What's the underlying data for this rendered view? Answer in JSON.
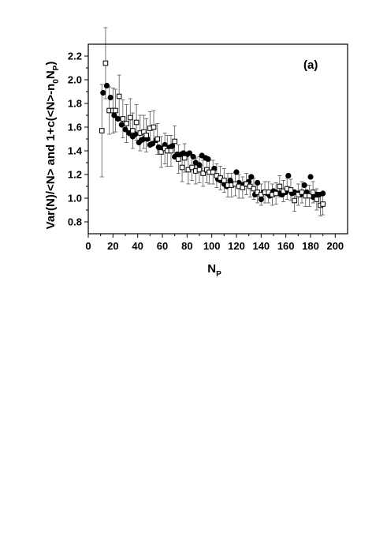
{
  "chart_data": {
    "type": "scatter",
    "title": "",
    "panel_label": "(a)",
    "xlabel": "N",
    "xlabel_sub": "P",
    "ylabel_parts": [
      {
        "t": "Var(N)/<N> and 1+c(<N>-n",
        "sub": false
      },
      {
        "t": "0",
        "sub": true
      },
      {
        "t": "N",
        "sub": false
      },
      {
        "t": "P",
        "sub": true
      },
      {
        "t": ")",
        "sub": false
      }
    ],
    "xlim": [
      0,
      210
    ],
    "ylim": [
      0.7,
      2.3
    ],
    "xticks": [
      0,
      20,
      40,
      60,
      80,
      100,
      120,
      140,
      160,
      180,
      200
    ],
    "yticks": [
      0.8,
      1.0,
      1.2,
      1.4,
      1.6,
      1.8,
      2.0,
      2.2
    ],
    "grid": false,
    "series": [
      {
        "marker": "filled-circle",
        "color": "#000000",
        "x": [
          12,
          15,
          18,
          21,
          24,
          27,
          30,
          33,
          36,
          38,
          41,
          43,
          45,
          48,
          50,
          52,
          55,
          57,
          60,
          62,
          64,
          66,
          68,
          70,
          72,
          75,
          77,
          80,
          82,
          85,
          87,
          90,
          92,
          95,
          97,
          100,
          102,
          105,
          107,
          110,
          112,
          115,
          117,
          120,
          122,
          125,
          127,
          130,
          132,
          135,
          137,
          140,
          142,
          145,
          147,
          150,
          152,
          155,
          157,
          160,
          162,
          165,
          167,
          170,
          172,
          175,
          177,
          180,
          182,
          185,
          187,
          190
        ],
        "y": [
          1.89,
          1.95,
          1.85,
          1.7,
          1.67,
          1.62,
          1.58,
          1.55,
          1.52,
          1.54,
          1.47,
          1.49,
          1.5,
          1.5,
          1.45,
          1.46,
          1.49,
          1.43,
          1.42,
          1.45,
          1.42,
          1.43,
          1.44,
          1.35,
          1.37,
          1.37,
          1.38,
          1.37,
          1.38,
          1.35,
          1.3,
          1.28,
          1.36,
          1.34,
          1.33,
          1.22,
          1.25,
          1.16,
          1.15,
          1.12,
          1.1,
          1.15,
          1.12,
          1.22,
          1.13,
          1.11,
          1.12,
          1.14,
          1.18,
          1.03,
          1.13,
          0.99,
          1.05,
          1.04,
          1.02,
          1.06,
          1.05,
          1.04,
          1.03,
          1.05,
          1.19,
          1.04,
          1.05,
          1.04,
          1.03,
          1.11,
          1.05,
          1.18,
          1.01,
          1.03,
          1.03,
          1.04
        ]
      },
      {
        "marker": "open-square",
        "color": "#000000",
        "x": [
          11,
          14,
          17,
          20,
          22,
          25,
          28,
          31,
          34,
          36,
          39,
          42,
          45,
          47,
          50,
          53,
          56,
          59,
          62,
          64,
          67,
          70,
          73,
          76,
          78,
          81,
          84,
          87,
          90,
          93,
          96,
          98,
          101,
          104,
          107,
          110,
          113,
          116,
          119,
          122,
          125,
          128,
          131,
          134,
          137,
          140,
          143,
          146,
          149,
          152,
          155,
          158,
          161,
          164,
          167,
          170,
          173,
          176,
          179,
          182,
          185,
          188,
          190
        ],
        "y": [
          1.57,
          2.14,
          1.74,
          1.74,
          1.74,
          1.86,
          1.67,
          1.63,
          1.68,
          1.57,
          1.64,
          1.55,
          1.56,
          1.53,
          1.59,
          1.6,
          1.5,
          1.39,
          1.42,
          1.4,
          1.4,
          1.48,
          1.33,
          1.26,
          1.34,
          1.24,
          1.26,
          1.23,
          1.24,
          1.21,
          1.24,
          1.22,
          1.22,
          1.19,
          1.17,
          1.15,
          1.11,
          1.11,
          1.12,
          1.1,
          1.09,
          1.12,
          1.1,
          1.08,
          1.05,
          1.03,
          1.05,
          1.05,
          1.03,
          1.04,
          1.1,
          1.06,
          1.08,
          1.07,
          0.98,
          1.03,
          1.05,
          1.02,
          1.02,
          1.05,
          0.99,
          0.94,
          0.95
        ],
        "yerr": [
          0.39,
          0.3,
          0.2,
          0.19,
          0.18,
          0.18,
          0.16,
          0.16,
          0.16,
          0.15,
          0.15,
          0.15,
          0.14,
          0.14,
          0.14,
          0.14,
          0.13,
          0.13,
          0.13,
          0.13,
          0.13,
          0.13,
          0.12,
          0.12,
          0.12,
          0.12,
          0.11,
          0.11,
          0.11,
          0.11,
          0.11,
          0.1,
          0.1,
          0.1,
          0.1,
          0.1,
          0.1,
          0.1,
          0.1,
          0.1,
          0.09,
          0.09,
          0.09,
          0.09,
          0.09,
          0.09,
          0.09,
          0.09,
          0.09,
          0.09,
          0.09,
          0.09,
          0.09,
          0.09,
          0.09,
          0.09,
          0.09,
          0.09,
          0.09,
          0.09,
          0.09,
          0.09,
          0.09
        ]
      }
    ]
  }
}
